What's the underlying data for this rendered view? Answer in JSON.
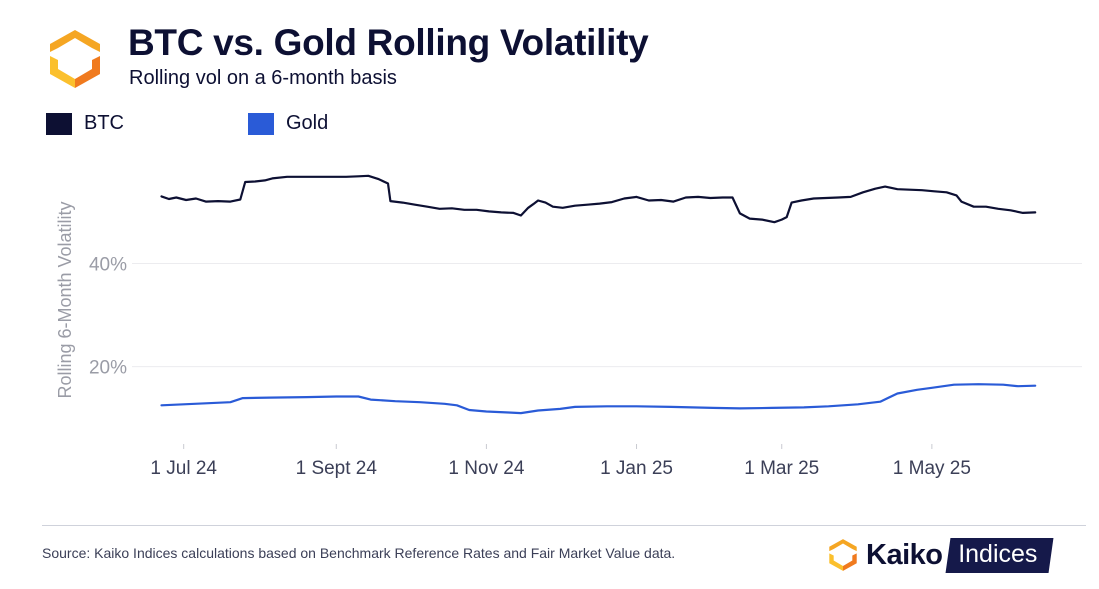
{
  "header": {
    "title": "BTC vs. Gold Rolling Volatility",
    "subtitle": "Rolling vol on a 6-month basis"
  },
  "logo": {
    "icon": "kaiko-hexagon-logo-icon",
    "colors": [
      "#f5a623",
      "#f07a1e",
      "#fbc02d"
    ]
  },
  "chart_data": {
    "type": "line",
    "title": "BTC vs. Gold Rolling Volatility",
    "subtitle": "Rolling vol on a 6-month basis",
    "xlabel": "",
    "ylabel": "Rolling 6-Month Volatility",
    "x_ticks": [
      "1 Jul 24",
      "1 Sept 24",
      "1 Nov 24",
      "1 Jan 25",
      "1 Mar 25",
      "1 May 25"
    ],
    "x_tick_dates": [
      "2024-07-01",
      "2024-09-01",
      "2024-11-01",
      "2025-01-01",
      "2025-03-01",
      "2025-05-01"
    ],
    "y_ticks": [
      {
        "value": 20,
        "label": "20%"
      },
      {
        "value": 40,
        "label": "40%"
      }
    ],
    "xlim": [
      "2024-06-10",
      "2025-07-01"
    ],
    "ylim": [
      5,
      62
    ],
    "grid": "horizontal",
    "legend_position": "top-left",
    "series": [
      {
        "name": "BTC",
        "color": "#0d1033",
        "points": [
          [
            "2024-06-22",
            53.0
          ],
          [
            "2024-06-25",
            52.5
          ],
          [
            "2024-06-28",
            52.8
          ],
          [
            "2024-07-02",
            52.3
          ],
          [
            "2024-07-06",
            52.6
          ],
          [
            "2024-07-10",
            52.0
          ],
          [
            "2024-07-15",
            52.1
          ],
          [
            "2024-07-20",
            52.0
          ],
          [
            "2024-07-24",
            52.4
          ],
          [
            "2024-07-26",
            55.8
          ],
          [
            "2024-07-30",
            55.9
          ],
          [
            "2024-08-03",
            56.1
          ],
          [
            "2024-08-06",
            56.5
          ],
          [
            "2024-08-12",
            56.8
          ],
          [
            "2024-08-20",
            56.8
          ],
          [
            "2024-08-28",
            56.8
          ],
          [
            "2024-09-05",
            56.8
          ],
          [
            "2024-09-10",
            56.9
          ],
          [
            "2024-09-14",
            57.0
          ],
          [
            "2024-09-18",
            56.4
          ],
          [
            "2024-09-22",
            55.5
          ],
          [
            "2024-09-23",
            52.1
          ],
          [
            "2024-09-28",
            51.8
          ],
          [
            "2024-10-03",
            51.4
          ],
          [
            "2024-10-08",
            51.0
          ],
          [
            "2024-10-13",
            50.6
          ],
          [
            "2024-10-18",
            50.7
          ],
          [
            "2024-10-23",
            50.4
          ],
          [
            "2024-10-28",
            50.4
          ],
          [
            "2024-11-02",
            50.1
          ],
          [
            "2024-11-07",
            49.9
          ],
          [
            "2024-11-12",
            49.8
          ],
          [
            "2024-11-15",
            49.3
          ],
          [
            "2024-11-18",
            50.8
          ],
          [
            "2024-11-20",
            51.5
          ],
          [
            "2024-11-22",
            52.2
          ],
          [
            "2024-11-25",
            51.8
          ],
          [
            "2024-11-28",
            51.0
          ],
          [
            "2024-12-02",
            50.8
          ],
          [
            "2024-12-07",
            51.2
          ],
          [
            "2024-12-12",
            51.4
          ],
          [
            "2024-12-17",
            51.6
          ],
          [
            "2024-12-22",
            51.9
          ],
          [
            "2024-12-27",
            52.6
          ],
          [
            "2025-01-01",
            52.9
          ],
          [
            "2025-01-06",
            52.2
          ],
          [
            "2025-01-11",
            52.3
          ],
          [
            "2025-01-16",
            52.0
          ],
          [
            "2025-01-21",
            52.8
          ],
          [
            "2025-01-26",
            52.9
          ],
          [
            "2025-01-31",
            52.7
          ],
          [
            "2025-02-05",
            52.8
          ],
          [
            "2025-02-09",
            52.8
          ],
          [
            "2025-02-12",
            49.7
          ],
          [
            "2025-02-16",
            48.7
          ],
          [
            "2025-02-21",
            48.5
          ],
          [
            "2025-02-26",
            48.0
          ],
          [
            "2025-03-01",
            48.5
          ],
          [
            "2025-03-03",
            49.0
          ],
          [
            "2025-03-05",
            51.8
          ],
          [
            "2025-03-09",
            52.2
          ],
          [
            "2025-03-14",
            52.6
          ],
          [
            "2025-03-19",
            52.7
          ],
          [
            "2025-03-24",
            52.8
          ],
          [
            "2025-03-29",
            52.9
          ],
          [
            "2025-04-03",
            53.8
          ],
          [
            "2025-04-08",
            54.5
          ],
          [
            "2025-04-12",
            54.9
          ],
          [
            "2025-04-17",
            54.4
          ],
          [
            "2025-04-22",
            54.3
          ],
          [
            "2025-04-27",
            54.2
          ],
          [
            "2025-05-02",
            54.0
          ],
          [
            "2025-05-07",
            53.8
          ],
          [
            "2025-05-11",
            53.2
          ],
          [
            "2025-05-13",
            52.0
          ],
          [
            "2025-05-18",
            51.0
          ],
          [
            "2025-05-23",
            51.0
          ],
          [
            "2025-05-28",
            50.6
          ],
          [
            "2025-06-02",
            50.3
          ],
          [
            "2025-06-07",
            49.8
          ],
          [
            "2025-06-12",
            49.9
          ]
        ]
      },
      {
        "name": "Gold",
        "color": "#2a5bd7",
        "points": [
          [
            "2024-06-22",
            12.5
          ],
          [
            "2024-07-01",
            12.7
          ],
          [
            "2024-07-10",
            12.9
          ],
          [
            "2024-07-20",
            13.1
          ],
          [
            "2024-07-25",
            13.9
          ],
          [
            "2024-08-05",
            14.0
          ],
          [
            "2024-08-20",
            14.1
          ],
          [
            "2024-09-01",
            14.2
          ],
          [
            "2024-09-10",
            14.2
          ],
          [
            "2024-09-15",
            13.6
          ],
          [
            "2024-09-25",
            13.3
          ],
          [
            "2024-10-05",
            13.1
          ],
          [
            "2024-10-15",
            12.8
          ],
          [
            "2024-10-20",
            12.5
          ],
          [
            "2024-10-25",
            11.6
          ],
          [
            "2024-11-01",
            11.3
          ],
          [
            "2024-11-10",
            11.1
          ],
          [
            "2024-11-15",
            11.0
          ],
          [
            "2024-11-22",
            11.5
          ],
          [
            "2024-12-01",
            11.8
          ],
          [
            "2024-12-07",
            12.2
          ],
          [
            "2024-12-20",
            12.3
          ],
          [
            "2025-01-01",
            12.3
          ],
          [
            "2025-01-15",
            12.2
          ],
          [
            "2025-02-01",
            12.0
          ],
          [
            "2025-02-12",
            11.9
          ],
          [
            "2025-02-25",
            12.0
          ],
          [
            "2025-03-10",
            12.1
          ],
          [
            "2025-03-20",
            12.3
          ],
          [
            "2025-04-01",
            12.7
          ],
          [
            "2025-04-10",
            13.2
          ],
          [
            "2025-04-17",
            14.8
          ],
          [
            "2025-04-25",
            15.5
          ],
          [
            "2025-05-01",
            15.9
          ],
          [
            "2025-05-10",
            16.5
          ],
          [
            "2025-05-20",
            16.6
          ],
          [
            "2025-05-30",
            16.5
          ],
          [
            "2025-06-05",
            16.2
          ],
          [
            "2025-06-12",
            16.3
          ]
        ]
      }
    ]
  },
  "footer": {
    "source": "Source: Kaiko Indices calculations based on Benchmark Reference Rates and Fair Market Value data.",
    "brand_name": "Kaiko",
    "brand_tag": "Indices",
    "brand_icon": "kaiko-hexagon-logo-icon"
  }
}
